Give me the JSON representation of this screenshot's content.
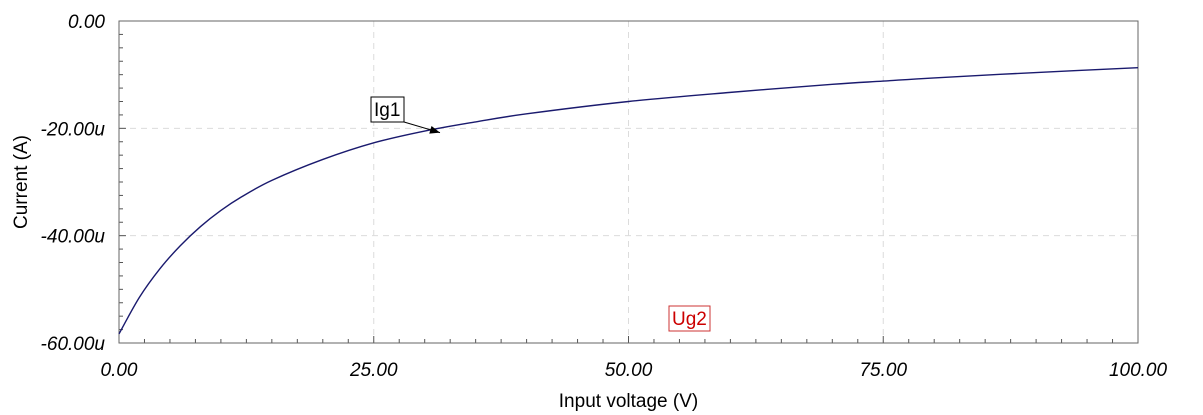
{
  "chart_data": {
    "type": "line",
    "xlabel": "Input voltage (V)",
    "ylabel": "Current (A)",
    "xlim": [
      0,
      100
    ],
    "ylim": [
      -60,
      0
    ],
    "grid": true,
    "x_tick_labels": [
      "0.00",
      "25.00",
      "50.00",
      "75.00",
      "100.00"
    ],
    "y_tick_labels": [
      "0.00",
      "-20.00u",
      "-40.00u",
      "-60.00u"
    ],
    "x_ticks": [
      0,
      25,
      50,
      75,
      100
    ],
    "y_ticks": [
      0,
      -20,
      -40,
      -60
    ],
    "series": [
      {
        "name": "Ig1",
        "color": "#1a1a6e",
        "x": [
          0,
          2,
          4,
          6,
          8,
          10,
          12,
          15,
          20,
          25,
          30,
          35,
          40,
          50,
          60,
          70,
          75,
          80,
          90,
          100
        ],
        "y": [
          -58.3,
          -51.5,
          -46.2,
          -41.9,
          -38.3,
          -35.3,
          -32.8,
          -29.7,
          -25.8,
          -22.7,
          -20.5,
          -18.8,
          -17.3,
          -15.0,
          -13.3,
          -11.8,
          -11.2,
          -10.6,
          -9.6,
          -8.7
        ]
      }
    ],
    "annotations": [
      {
        "text": "Ig1",
        "color": "#000000",
        "box_color": "#000000",
        "points_to": [
          31.5,
          -20.8
        ]
      },
      {
        "text": "Ug2",
        "color": "#cc0000",
        "box_color": "#cc3333"
      }
    ]
  }
}
